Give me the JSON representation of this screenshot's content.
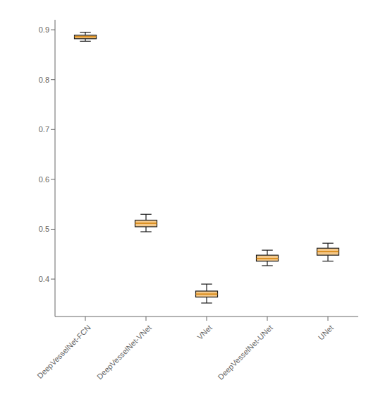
{
  "chart_data": {
    "type": "box",
    "categories": [
      "DeepVesselNet-FCN",
      "DeepVesselNet-VNet",
      "VNet",
      "DeepVesselNet-UNet",
      "UNet"
    ],
    "box_data": [
      {
        "whislo": 0.877,
        "q1": 0.882,
        "med": 0.886,
        "q3": 0.889,
        "whishi": 0.895
      },
      {
        "whislo": 0.495,
        "q1": 0.505,
        "med": 0.512,
        "q3": 0.518,
        "whishi": 0.53
      },
      {
        "whislo": 0.352,
        "q1": 0.364,
        "med": 0.37,
        "q3": 0.376,
        "whishi": 0.39
      },
      {
        "whislo": 0.427,
        "q1": 0.436,
        "med": 0.441,
        "q3": 0.448,
        "whishi": 0.458
      },
      {
        "whislo": 0.436,
        "q1": 0.448,
        "med": 0.455,
        "q3": 0.462,
        "whishi": 0.472
      }
    ],
    "color": {
      "box": "#f5c98a",
      "median": "#d4820a",
      "edge": "#1a1a1a"
    },
    "ylim": [
      0.325,
      0.92
    ],
    "yticks": [
      0.4,
      0.5,
      0.6,
      0.7,
      0.8,
      0.9
    ],
    "grid": false
  }
}
